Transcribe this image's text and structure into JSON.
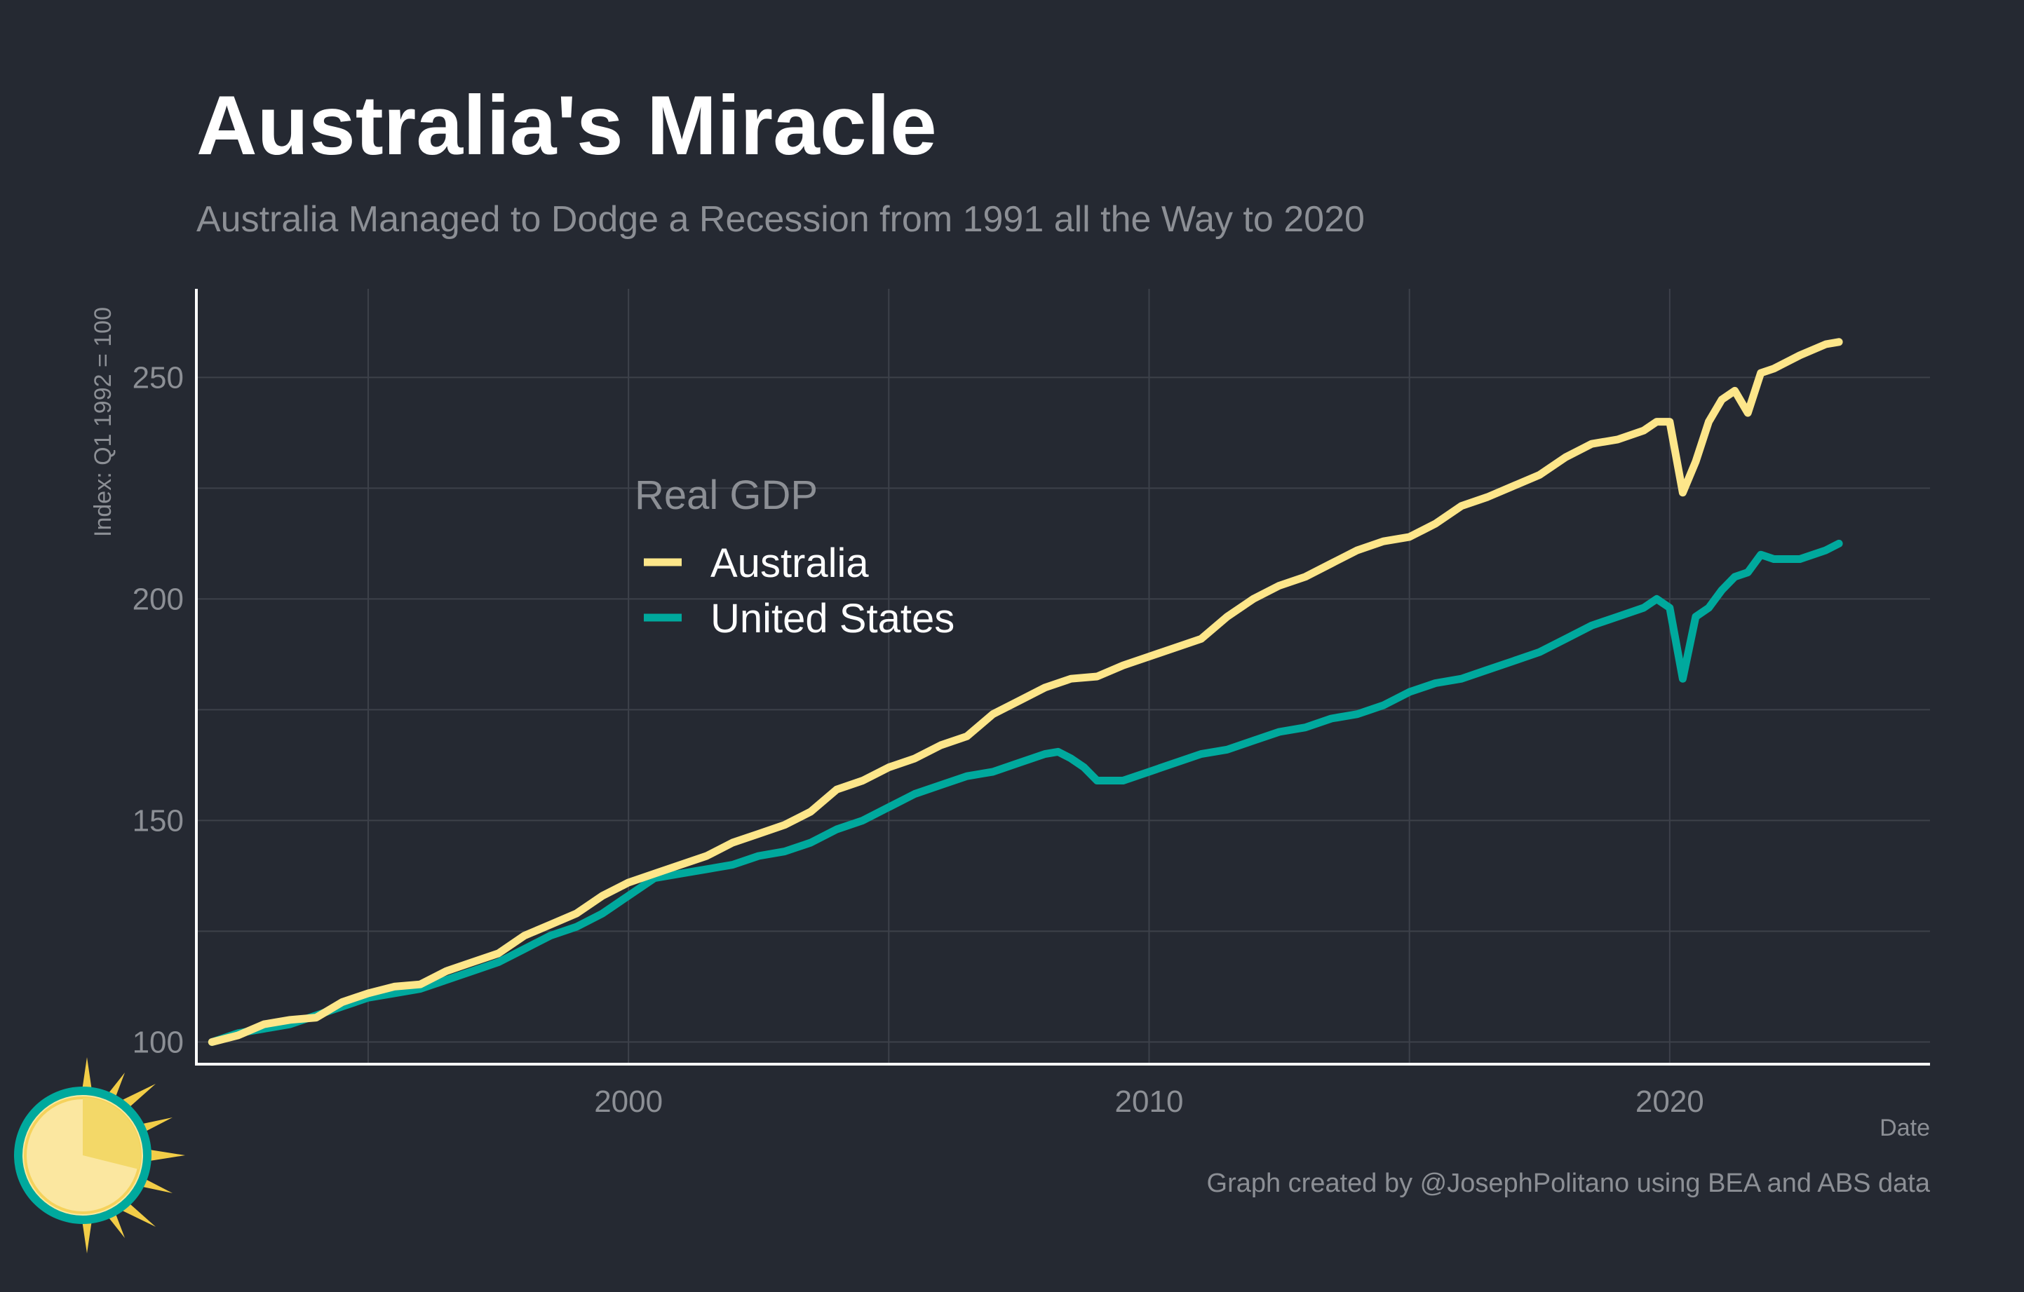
{
  "title": "Australia's Miracle",
  "subtitle": "Australia Managed to Dodge a Recession from 1991 all the Way to 2020",
  "caption": "Graph created by @JosephPolitano using BEA and ABS data",
  "colors": {
    "background": "#252932",
    "australia": "#fde68a",
    "united_states": "#00a99d",
    "text_muted": "#8c8f95",
    "grid": "#3d414a"
  },
  "logo": {
    "icon": "sun-icon"
  },
  "chart_data": {
    "type": "line",
    "xlabel": "Date",
    "ylabel": "Index: Q1 1992 = 100",
    "xlim": [
      1991.7,
      2025.0
    ],
    "ylim": [
      95,
      270
    ],
    "x_ticks": [
      2000,
      2010,
      2020
    ],
    "x_tick_labels": [
      "2000",
      "2010",
      "2020"
    ],
    "y_ticks": [
      100,
      150,
      200,
      250
    ],
    "y_tick_labels": [
      "100",
      "150",
      "200",
      "250"
    ],
    "grid": true,
    "legend": {
      "title": "Real GDP",
      "position": "upper-left-inside",
      "entries": [
        "Australia",
        "United States"
      ]
    },
    "series": [
      {
        "name": "Australia",
        "color": "#fde68a",
        "points": [
          [
            1992.0,
            100
          ],
          [
            1992.5,
            101.5
          ],
          [
            1993.0,
            104
          ],
          [
            1993.5,
            105
          ],
          [
            1994.0,
            105.5
          ],
          [
            1994.5,
            109
          ],
          [
            1995.0,
            111
          ],
          [
            1995.5,
            112.5
          ],
          [
            1996.0,
            113
          ],
          [
            1996.5,
            116
          ],
          [
            1997.0,
            118
          ],
          [
            1997.5,
            120
          ],
          [
            1998.0,
            124
          ],
          [
            1998.5,
            126.5
          ],
          [
            1999.0,
            129
          ],
          [
            1999.5,
            133
          ],
          [
            2000.0,
            136
          ],
          [
            2000.5,
            138
          ],
          [
            2001.0,
            140
          ],
          [
            2001.5,
            142
          ],
          [
            2002.0,
            145
          ],
          [
            2002.5,
            147
          ],
          [
            2003.0,
            149
          ],
          [
            2003.5,
            152
          ],
          [
            2004.0,
            157
          ],
          [
            2004.5,
            159
          ],
          [
            2005.0,
            162
          ],
          [
            2005.5,
            164
          ],
          [
            2006.0,
            167
          ],
          [
            2006.5,
            169
          ],
          [
            2007.0,
            174
          ],
          [
            2007.5,
            177
          ],
          [
            2008.0,
            180
          ],
          [
            2008.5,
            182
          ],
          [
            2009.0,
            182.5
          ],
          [
            2009.5,
            185
          ],
          [
            2010.0,
            187
          ],
          [
            2010.5,
            189
          ],
          [
            2011.0,
            191
          ],
          [
            2011.5,
            196
          ],
          [
            2012.0,
            200
          ],
          [
            2012.5,
            203
          ],
          [
            2013.0,
            205
          ],
          [
            2013.5,
            208
          ],
          [
            2014.0,
            211
          ],
          [
            2014.5,
            213
          ],
          [
            2015.0,
            214
          ],
          [
            2015.5,
            217
          ],
          [
            2016.0,
            221
          ],
          [
            2016.5,
            223
          ],
          [
            2017.0,
            225.5
          ],
          [
            2017.5,
            228
          ],
          [
            2018.0,
            232
          ],
          [
            2018.5,
            235
          ],
          [
            2019.0,
            236
          ],
          [
            2019.5,
            238
          ],
          [
            2019.75,
            240
          ],
          [
            2020.0,
            240
          ],
          [
            2020.25,
            224
          ],
          [
            2020.5,
            231
          ],
          [
            2020.75,
            240
          ],
          [
            2021.0,
            245
          ],
          [
            2021.25,
            247
          ],
          [
            2021.5,
            242
          ],
          [
            2021.75,
            251
          ],
          [
            2022.0,
            252
          ],
          [
            2022.5,
            255
          ],
          [
            2023.0,
            257.5
          ],
          [
            2023.25,
            258
          ]
        ]
      },
      {
        "name": "United States",
        "color": "#00a99d",
        "points": [
          [
            1992.0,
            100
          ],
          [
            1992.5,
            102
          ],
          [
            1993.0,
            103
          ],
          [
            1993.5,
            104
          ],
          [
            1994.0,
            106
          ],
          [
            1994.5,
            108
          ],
          [
            1995.0,
            110
          ],
          [
            1995.5,
            111
          ],
          [
            1996.0,
            112
          ],
          [
            1996.5,
            114
          ],
          [
            1997.0,
            116
          ],
          [
            1997.5,
            118
          ],
          [
            1998.0,
            121
          ],
          [
            1998.5,
            124
          ],
          [
            1999.0,
            126
          ],
          [
            1999.5,
            129
          ],
          [
            2000.0,
            133
          ],
          [
            2000.5,
            137
          ],
          [
            2001.0,
            138
          ],
          [
            2001.5,
            139
          ],
          [
            2002.0,
            140
          ],
          [
            2002.5,
            142
          ],
          [
            2003.0,
            143
          ],
          [
            2003.5,
            145
          ],
          [
            2004.0,
            148
          ],
          [
            2004.5,
            150
          ],
          [
            2005.0,
            153
          ],
          [
            2005.5,
            156
          ],
          [
            2006.0,
            158
          ],
          [
            2006.5,
            160
          ],
          [
            2007.0,
            161
          ],
          [
            2007.5,
            163
          ],
          [
            2008.0,
            165
          ],
          [
            2008.25,
            165.5
          ],
          [
            2008.5,
            164
          ],
          [
            2008.75,
            162
          ],
          [
            2009.0,
            159
          ],
          [
            2009.5,
            159
          ],
          [
            2010.0,
            161
          ],
          [
            2010.5,
            163
          ],
          [
            2011.0,
            165
          ],
          [
            2011.5,
            166
          ],
          [
            2012.0,
            168
          ],
          [
            2012.5,
            170
          ],
          [
            2013.0,
            171
          ],
          [
            2013.5,
            173
          ],
          [
            2014.0,
            174
          ],
          [
            2014.5,
            176
          ],
          [
            2015.0,
            179
          ],
          [
            2015.5,
            181
          ],
          [
            2016.0,
            182
          ],
          [
            2016.5,
            184
          ],
          [
            2017.0,
            186
          ],
          [
            2017.5,
            188
          ],
          [
            2018.0,
            191
          ],
          [
            2018.5,
            194
          ],
          [
            2019.0,
            196
          ],
          [
            2019.5,
            198
          ],
          [
            2019.75,
            200
          ],
          [
            2020.0,
            198
          ],
          [
            2020.25,
            182
          ],
          [
            2020.5,
            196
          ],
          [
            2020.75,
            198
          ],
          [
            2021.0,
            202
          ],
          [
            2021.25,
            205
          ],
          [
            2021.5,
            206
          ],
          [
            2021.75,
            210
          ],
          [
            2022.0,
            209
          ],
          [
            2022.5,
            209
          ],
          [
            2023.0,
            211
          ],
          [
            2023.25,
            212.5
          ]
        ]
      }
    ]
  }
}
